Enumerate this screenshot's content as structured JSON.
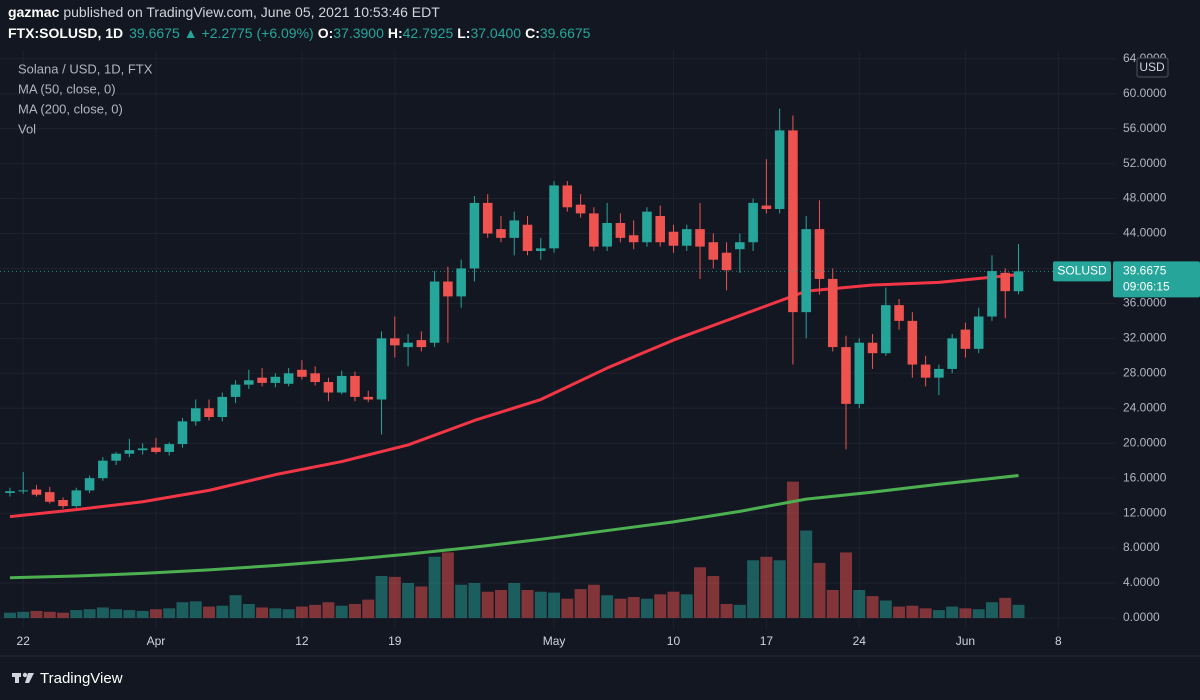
{
  "header": {
    "publisher": "gazmac",
    "published": "published on TradingView.com, June 05, 2021 10:53:46 EDT",
    "symbol": "FTX:SOLUSD, 1D",
    "last": "39.6675",
    "arrow": "▲",
    "change": "+2.2775 (+6.09%)",
    "ohlc": [
      {
        "label": "O:",
        "value": "37.3900"
      },
      {
        "label": "H:",
        "value": "42.7925"
      },
      {
        "label": "L:",
        "value": "37.0400"
      },
      {
        "label": "C:",
        "value": "39.6675"
      }
    ]
  },
  "chart_data": {
    "type": "candlestick",
    "title": "Solana / USD, 1D, FTX",
    "up_color": "#26a69a",
    "down_color": "#ef5350",
    "open": [
      14.3,
      14.5,
      14.7,
      14.4,
      13.5,
      12.8,
      14.6,
      16.0,
      18.0,
      18.8,
      19.2,
      19.5,
      19.0,
      19.9,
      22.5,
      24.0,
      23.0,
      25.3,
      26.7,
      27.5,
      26.9,
      26.8,
      28.4,
      28.0,
      27.0,
      25.8,
      27.7,
      25.3,
      25.0,
      32.0,
      31.0,
      31.8,
      31.5,
      38.5,
      36.8,
      40.0,
      47.5,
      44.5,
      43.5,
      45.0,
      42.0,
      42.3,
      49.5,
      47.3,
      46.3,
      42.5,
      45.2,
      43.8,
      43.0,
      46.0,
      44.2,
      42.6,
      44.5,
      43.0,
      41.8,
      42.2,
      43.0,
      47.2,
      46.8,
      55.8,
      35.0,
      44.5,
      38.8,
      31.0,
      24.5,
      31.5,
      30.3,
      35.8,
      34.0,
      29.0,
      27.5,
      28.5,
      33.0,
      30.8,
      34.5,
      39.5,
      37.39
    ],
    "high": [
      14.9,
      16.7,
      15.2,
      15.0,
      13.8,
      14.9,
      16.3,
      18.4,
      19.0,
      20.5,
      20.0,
      20.6,
      20.1,
      22.9,
      25.0,
      25.0,
      25.8,
      27.2,
      28.4,
      28.6,
      28.0,
      28.6,
      29.5,
      28.8,
      27.5,
      28.3,
      28.2,
      26.0,
      32.8,
      34.5,
      32.5,
      32.8,
      39.7,
      40.2,
      41.0,
      48.3,
      48.5,
      46.0,
      46.5,
      46.0,
      43.5,
      50.0,
      50.0,
      48.5,
      47.0,
      47.5,
      46.3,
      45.5,
      47.0,
      47.2,
      45.0,
      45.0,
      47.5,
      44.0,
      43.0,
      44.0,
      48.0,
      52.5,
      58.3,
      57.5,
      46.0,
      47.8,
      40.0,
      32.3,
      32.0,
      32.5,
      37.8,
      36.5,
      35.0,
      30.0,
      29.0,
      32.5,
      33.8,
      35.5,
      41.5,
      40.0,
      42.7925
    ],
    "low": [
      13.9,
      14.2,
      13.9,
      13.1,
      12.5,
      12.6,
      14.3,
      15.7,
      17.5,
      18.4,
      18.7,
      18.8,
      18.6,
      19.5,
      22.0,
      22.6,
      22.5,
      24.6,
      26.2,
      26.5,
      26.4,
      26.5,
      27.3,
      26.6,
      24.8,
      25.6,
      24.8,
      24.7,
      21.0,
      29.8,
      28.8,
      30.5,
      31.0,
      31.5,
      35.5,
      38.5,
      43.5,
      43.0,
      41.5,
      41.5,
      41.0,
      41.8,
      46.5,
      45.8,
      42.0,
      42.0,
      43.0,
      42.2,
      42.5,
      42.5,
      41.8,
      42.0,
      38.8,
      40.0,
      37.5,
      39.5,
      42.0,
      46.3,
      46.3,
      29.0,
      32.0,
      37.0,
      30.5,
      19.3,
      24.0,
      28.5,
      30.0,
      33.0,
      27.5,
      26.5,
      25.5,
      28.0,
      29.8,
      30.3,
      34.0,
      34.3,
      37.04
    ],
    "close": [
      14.5,
      14.6,
      14.1,
      13.3,
      12.8,
      14.6,
      16.0,
      18.0,
      18.8,
      19.2,
      19.4,
      19.0,
      19.9,
      22.5,
      24.0,
      23.0,
      25.3,
      26.7,
      27.2,
      26.9,
      27.6,
      28.0,
      27.6,
      27.0,
      25.8,
      27.7,
      25.3,
      25.0,
      32.0,
      31.2,
      31.5,
      31.0,
      38.5,
      36.8,
      40.0,
      47.5,
      44.0,
      43.5,
      45.5,
      42.0,
      42.3,
      49.5,
      47.0,
      46.3,
      42.5,
      45.2,
      43.5,
      43.0,
      46.5,
      43.0,
      42.6,
      44.5,
      42.5,
      41.0,
      39.8,
      43.0,
      47.5,
      46.8,
      55.8,
      35.0,
      44.5,
      38.8,
      31.0,
      24.5,
      31.5,
      30.3,
      35.8,
      34.0,
      29.0,
      27.5,
      28.5,
      32.0,
      30.8,
      34.5,
      39.7,
      37.4,
      39.6675
    ],
    "volume_name": "Vol",
    "volume": [
      0.6,
      0.7,
      0.8,
      0.7,
      0.6,
      0.9,
      1.0,
      1.2,
      1.0,
      0.9,
      0.8,
      1.0,
      1.1,
      1.8,
      1.9,
      1.3,
      1.4,
      2.6,
      1.6,
      1.2,
      1.1,
      1.0,
      1.3,
      1.5,
      1.8,
      1.4,
      1.6,
      2.1,
      4.8,
      4.7,
      4.0,
      3.6,
      7.0,
      7.5,
      3.8,
      4.0,
      3.0,
      3.2,
      4.0,
      3.2,
      3.0,
      2.9,
      2.2,
      3.3,
      3.8,
      2.6,
      2.2,
      2.4,
      2.2,
      2.7,
      3.0,
      2.7,
      5.8,
      4.8,
      1.6,
      1.5,
      6.6,
      7.0,
      6.6,
      15.6,
      10.0,
      6.3,
      3.2,
      7.5,
      3.2,
      2.5,
      2.0,
      1.3,
      1.4,
      1.1,
      0.9,
      1.3,
      1.1,
      1.0,
      1.8,
      2.3,
      1.5
    ],
    "series": [
      {
        "name": "MA (50, close, 0)",
        "color": "#f23645",
        "x": [
          0,
          5,
          10,
          15,
          20,
          25,
          30,
          35,
          40,
          45,
          50,
          55,
          60,
          65,
          70,
          76
        ],
        "values": [
          11.6,
          12.4,
          13.3,
          14.6,
          16.4,
          17.9,
          19.8,
          22.6,
          25.0,
          28.6,
          31.8,
          34.6,
          37.4,
          38.1,
          38.4,
          39.3
        ]
      },
      {
        "name": "MA (200, close, 0)",
        "color": "#4caf50",
        "x": [
          0,
          5,
          10,
          15,
          20,
          25,
          30,
          35,
          40,
          45,
          50,
          55,
          60,
          65,
          70,
          76
        ],
        "values": [
          4.6,
          4.8,
          5.1,
          5.5,
          6.0,
          6.6,
          7.3,
          8.1,
          9.0,
          10.0,
          11.0,
          12.2,
          13.6,
          14.4,
          15.3,
          16.3
        ]
      }
    ],
    "xlim": [
      -0.75,
      83.27
    ],
    "xticks": [
      {
        "value": 1,
        "label": "22"
      },
      {
        "value": 11,
        "label": "Apr"
      },
      {
        "value": 22,
        "label": "12"
      },
      {
        "value": 29,
        "label": "19"
      },
      {
        "value": 41,
        "label": "May"
      },
      {
        "value": 50,
        "label": "10"
      },
      {
        "value": 57,
        "label": "17"
      },
      {
        "value": 64,
        "label": "24"
      },
      {
        "value": 72,
        "label": "Jun"
      },
      {
        "value": 79,
        "label": "8"
      }
    ],
    "ylim": [
      -1.15,
      65.0
    ],
    "yticks": [
      {
        "value": 0,
        "label": "0.0000"
      },
      {
        "value": 4,
        "label": "4.0000"
      },
      {
        "value": 8,
        "label": "8.0000"
      },
      {
        "value": 12,
        "label": "12.0000"
      },
      {
        "value": 16,
        "label": "16.0000"
      },
      {
        "value": 20,
        "label": "20.0000"
      },
      {
        "value": 24,
        "label": "24.0000"
      },
      {
        "value": 28,
        "label": "28.0000"
      },
      {
        "value": 32,
        "label": "32.0000"
      },
      {
        "value": 36,
        "label": "36.0000"
      },
      {
        "value": 40,
        "label": "40.0000"
      },
      {
        "value": 44,
        "label": "44.0000"
      },
      {
        "value": 48,
        "label": "48.0000"
      },
      {
        "value": 52,
        "label": "52.0000"
      },
      {
        "value": 56,
        "label": "56.0000"
      },
      {
        "value": 60,
        "label": "60.0000"
      },
      {
        "value": 64,
        "label": "64.0000"
      }
    ],
    "y_unit": "USD",
    "grid": true,
    "last_label": {
      "symbol": "SOLUSD",
      "price": "39.6675",
      "countdown": "09:06:15"
    }
  },
  "footer": {
    "brand": "TradingView"
  }
}
